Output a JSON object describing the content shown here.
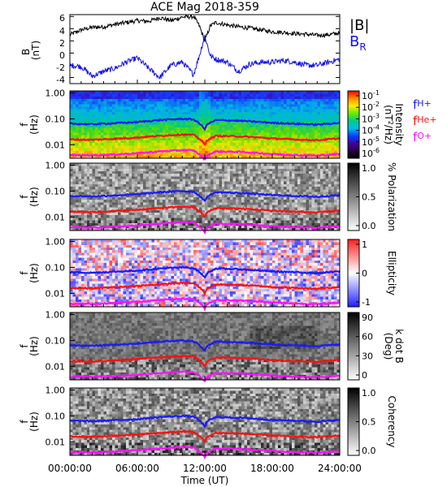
{
  "title": "ACE Mag 2018-359",
  "x_axis": {
    "label": "Time (UT)",
    "ticks": [
      "00:00:00",
      "06:00:00",
      "12:00:00",
      "18:00:00",
      "24:00:00"
    ]
  },
  "colors": {
    "bmag": "#000000",
    "br": "#1010ee",
    "fH": "#1a1aff",
    "fHe": "#ff1010",
    "fO": "#ff10ff"
  },
  "panel_b": {
    "ylabel_line1": "B",
    "ylabel_line2": "(nT)",
    "ticks": [
      "6",
      "4",
      "2",
      "0",
      "-2",
      "-4"
    ],
    "legend_bmag": "|B|",
    "legend_br": "B",
    "legend_br_sub": "R"
  },
  "freq_ticks": [
    "1.00",
    "0.10",
    "0.01"
  ],
  "freq_label_line1": "f",
  "freq_label_line2": "(Hz)",
  "spectrogram_panels": [
    {
      "name": "intensity",
      "colorbar_ticks": [
        "10",
        "10",
        "10",
        "10",
        "10",
        "10"
      ],
      "colorbar_exponents": [
        "-1",
        "-2",
        "-3",
        "-4",
        "-5",
        "-6"
      ],
      "label_line1": "Intensity",
      "label_line2": "(nT",
      "label_sup": "2",
      "label_line2_end": "/Hz)",
      "legend": [
        {
          "base": "f",
          "sub": "H+"
        },
        {
          "base": "f",
          "sub": "He+"
        },
        {
          "base": "f",
          "sub": "O+"
        }
      ]
    },
    {
      "name": "polarization",
      "colorbar_ticks": [
        "1.0",
        "0.5",
        "0.0"
      ],
      "label_line1": "% Polarization"
    },
    {
      "name": "ellipticity",
      "colorbar_ticks": [
        "1",
        "0",
        "-1"
      ],
      "label_line1": "Ellipticity"
    },
    {
      "name": "k-dot-b",
      "colorbar_ticks": [
        "90",
        "60",
        "30",
        "0"
      ],
      "label_line1": "k dot B",
      "label_line2": "(Deg)"
    },
    {
      "name": "coherency",
      "colorbar_ticks": [
        "1.0",
        "0.5",
        "0.0"
      ],
      "label_line1": "Coherency"
    }
  ],
  "chart_data": {
    "type": "line",
    "title": "ACE Mag 2018-359",
    "xlabel": "Time (UT)",
    "xlim": [
      0,
      24
    ],
    "panels": [
      {
        "type": "line",
        "ylabel": "B (nT)",
        "ylim": [
          -5,
          6.3
        ],
        "series": [
          {
            "name": "|B|",
            "x": [
              0,
              1,
              2,
              3,
              4,
              5,
              6,
              7,
              8,
              9,
              10,
              11,
              11.5,
              12,
              12.5,
              13,
              14,
              15,
              16,
              17,
              18,
              19,
              20,
              21,
              22,
              23,
              24
            ],
            "y": [
              3.0,
              3.8,
              4.2,
              4.3,
              4.7,
              5.0,
              5.3,
              5.2,
              5.8,
              5.3,
              5.9,
              6.0,
              4.5,
              2.0,
              4.5,
              5.0,
              4.6,
              4.3,
              4.1,
              3.8,
              3.5,
              3.4,
              3.2,
              3.1,
              2.9,
              3.0,
              3.3
            ]
          },
          {
            "name": "B",
            "x": [
              0,
              1,
              2,
              3,
              4,
              5,
              6,
              7,
              8,
              9,
              10,
              11,
              11.5,
              12,
              12.5,
              13,
              14,
              15,
              16,
              17,
              18,
              19,
              20,
              21,
              22,
              23,
              24
            ],
            "y": [
              -2.0,
              -2.2,
              -3.8,
              -3.0,
              -2.5,
              -1.5,
              -0.8,
              -2.5,
              -4.0,
              -2.0,
              -1.5,
              -3.5,
              -0.5,
              2.8,
              -0.5,
              -1.0,
              -1.5,
              -3.0,
              -1.8,
              -1.5,
              -1.5,
              -1.2,
              -1.5,
              -2.0,
              -2.0,
              -1.5,
              -1.0
            ]
          }
        ]
      },
      {
        "type": "heatmap",
        "name": "intensity",
        "ylabel": "f (Hz)",
        "yscale": "log",
        "ylim": [
          0.003,
          1.2
        ],
        "clim_log10": [
          -6,
          -1
        ],
        "series": [
          {
            "name": "fH+",
            "x": [
              0,
              2,
              4,
              6,
              8,
              10,
              11,
              11.8,
              12,
              12.2,
              13,
              15,
              16,
              18,
              20,
              22,
              24
            ],
            "y": [
              0.065,
              0.062,
              0.068,
              0.075,
              0.09,
              0.1,
              0.095,
              0.05,
              0.04,
              0.06,
              0.09,
              0.085,
              0.08,
              0.07,
              0.065,
              0.06,
              0.07
            ]
          },
          {
            "name": "fHe+",
            "x": [
              0,
              2,
              4,
              6,
              8,
              10,
              11,
              11.8,
              12,
              12.2,
              13,
              15,
              16,
              18,
              20,
              22,
              24
            ],
            "y": [
              0.016,
              0.0155,
              0.017,
              0.019,
              0.022,
              0.025,
              0.024,
              0.013,
              0.01,
              0.015,
              0.022,
              0.021,
              0.02,
              0.0175,
              0.016,
              0.015,
              0.0175
            ]
          },
          {
            "name": "fO+",
            "x": [
              0,
              2,
              4,
              6,
              8,
              10,
              11,
              11.8,
              12,
              12.2,
              13,
              15,
              16,
              18,
              20,
              22,
              24
            ],
            "y": [
              0.004,
              0.0039,
              0.0042,
              0.0047,
              0.0055,
              0.0062,
              0.006,
              0.0033,
              0.0026,
              0.0038,
              0.0055,
              0.0053,
              0.005,
              0.0044,
              0.004,
              0.0038,
              0.0044
            ]
          }
        ]
      },
      {
        "type": "heatmap",
        "name": "polarization",
        "ylabel": "f (Hz)",
        "yscale": "log",
        "clim": [
          0,
          1
        ]
      },
      {
        "type": "heatmap",
        "name": "ellipticity",
        "ylabel": "f (Hz)",
        "yscale": "log",
        "clim": [
          -1,
          1
        ]
      },
      {
        "type": "heatmap",
        "name": "k-dot-b",
        "ylabel": "f (Hz)",
        "yscale": "log",
        "clim": [
          0,
          90
        ]
      },
      {
        "type": "heatmap",
        "name": "coherency",
        "ylabel": "f (Hz)",
        "yscale": "log",
        "clim": [
          0,
          1
        ]
      }
    ]
  }
}
